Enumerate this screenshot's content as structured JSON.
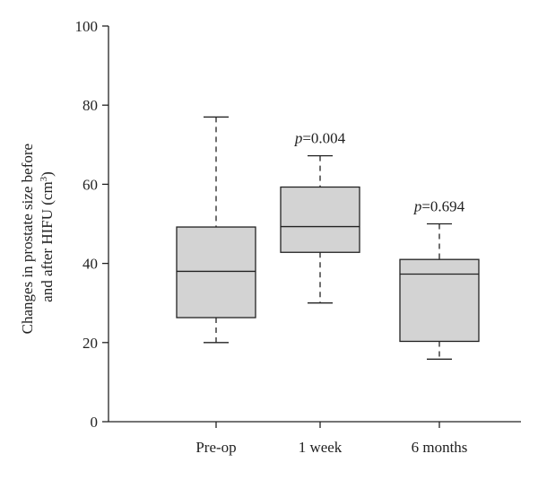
{
  "chart_data": {
    "type": "box",
    "categories": [
      "Pre-op",
      "1 week",
      "6 months"
    ],
    "boxes": [
      {
        "category": "Pre-op",
        "min": 20,
        "q1": 26.3,
        "median": 38,
        "q3": 49.2,
        "max": 77
      },
      {
        "category": "1 week",
        "min": 30,
        "q1": 42.8,
        "median": 49.3,
        "q3": 59.3,
        "max": 67.2
      },
      {
        "category": "6 months",
        "min": 15.8,
        "q1": 20.3,
        "median": 37.3,
        "q3": 41,
        "max": 50
      }
    ],
    "annotations": [
      {
        "category": "1 week",
        "p_label": "p",
        "text": "=0.004"
      },
      {
        "category": "6 months",
        "p_label": "p",
        "text": "=0.694"
      }
    ],
    "ylabel_line1": "Changes in prostate size before",
    "ylabel_line2_main": "and after HIFU (cm",
    "ylabel_line2_sup": "3",
    "ylabel_line2_close": ")",
    "ylim": [
      0,
      100
    ],
    "yticks": [
      0,
      20,
      40,
      60,
      80,
      100
    ],
    "box_fill": "#d3d3d3",
    "line_color": "#222222",
    "grid": false
  }
}
